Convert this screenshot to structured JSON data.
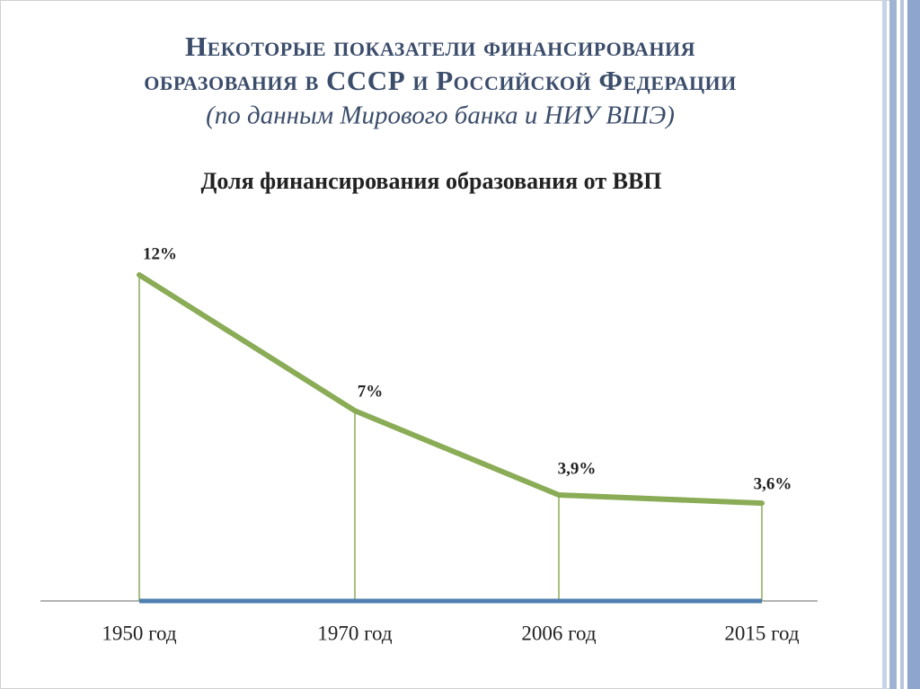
{
  "chart_data": {
    "type": "line",
    "title": [
      "Некоторые показатели финансирования",
      "образования в СССР и Российской Федерации"
    ],
    "subtitle": "(по данным Мирового банка и НИУ ВШЭ)",
    "chart_title": "Доля финансирования образования от ВВП",
    "categories": [
      "1950 год",
      "1970 год",
      "2006 год",
      "2015 год"
    ],
    "values": [
      12,
      7,
      3.9,
      3.6
    ],
    "value_labels": [
      "12%",
      "7%",
      "3,9%",
      "3,6%"
    ],
    "color": "#8aac56"
  }
}
